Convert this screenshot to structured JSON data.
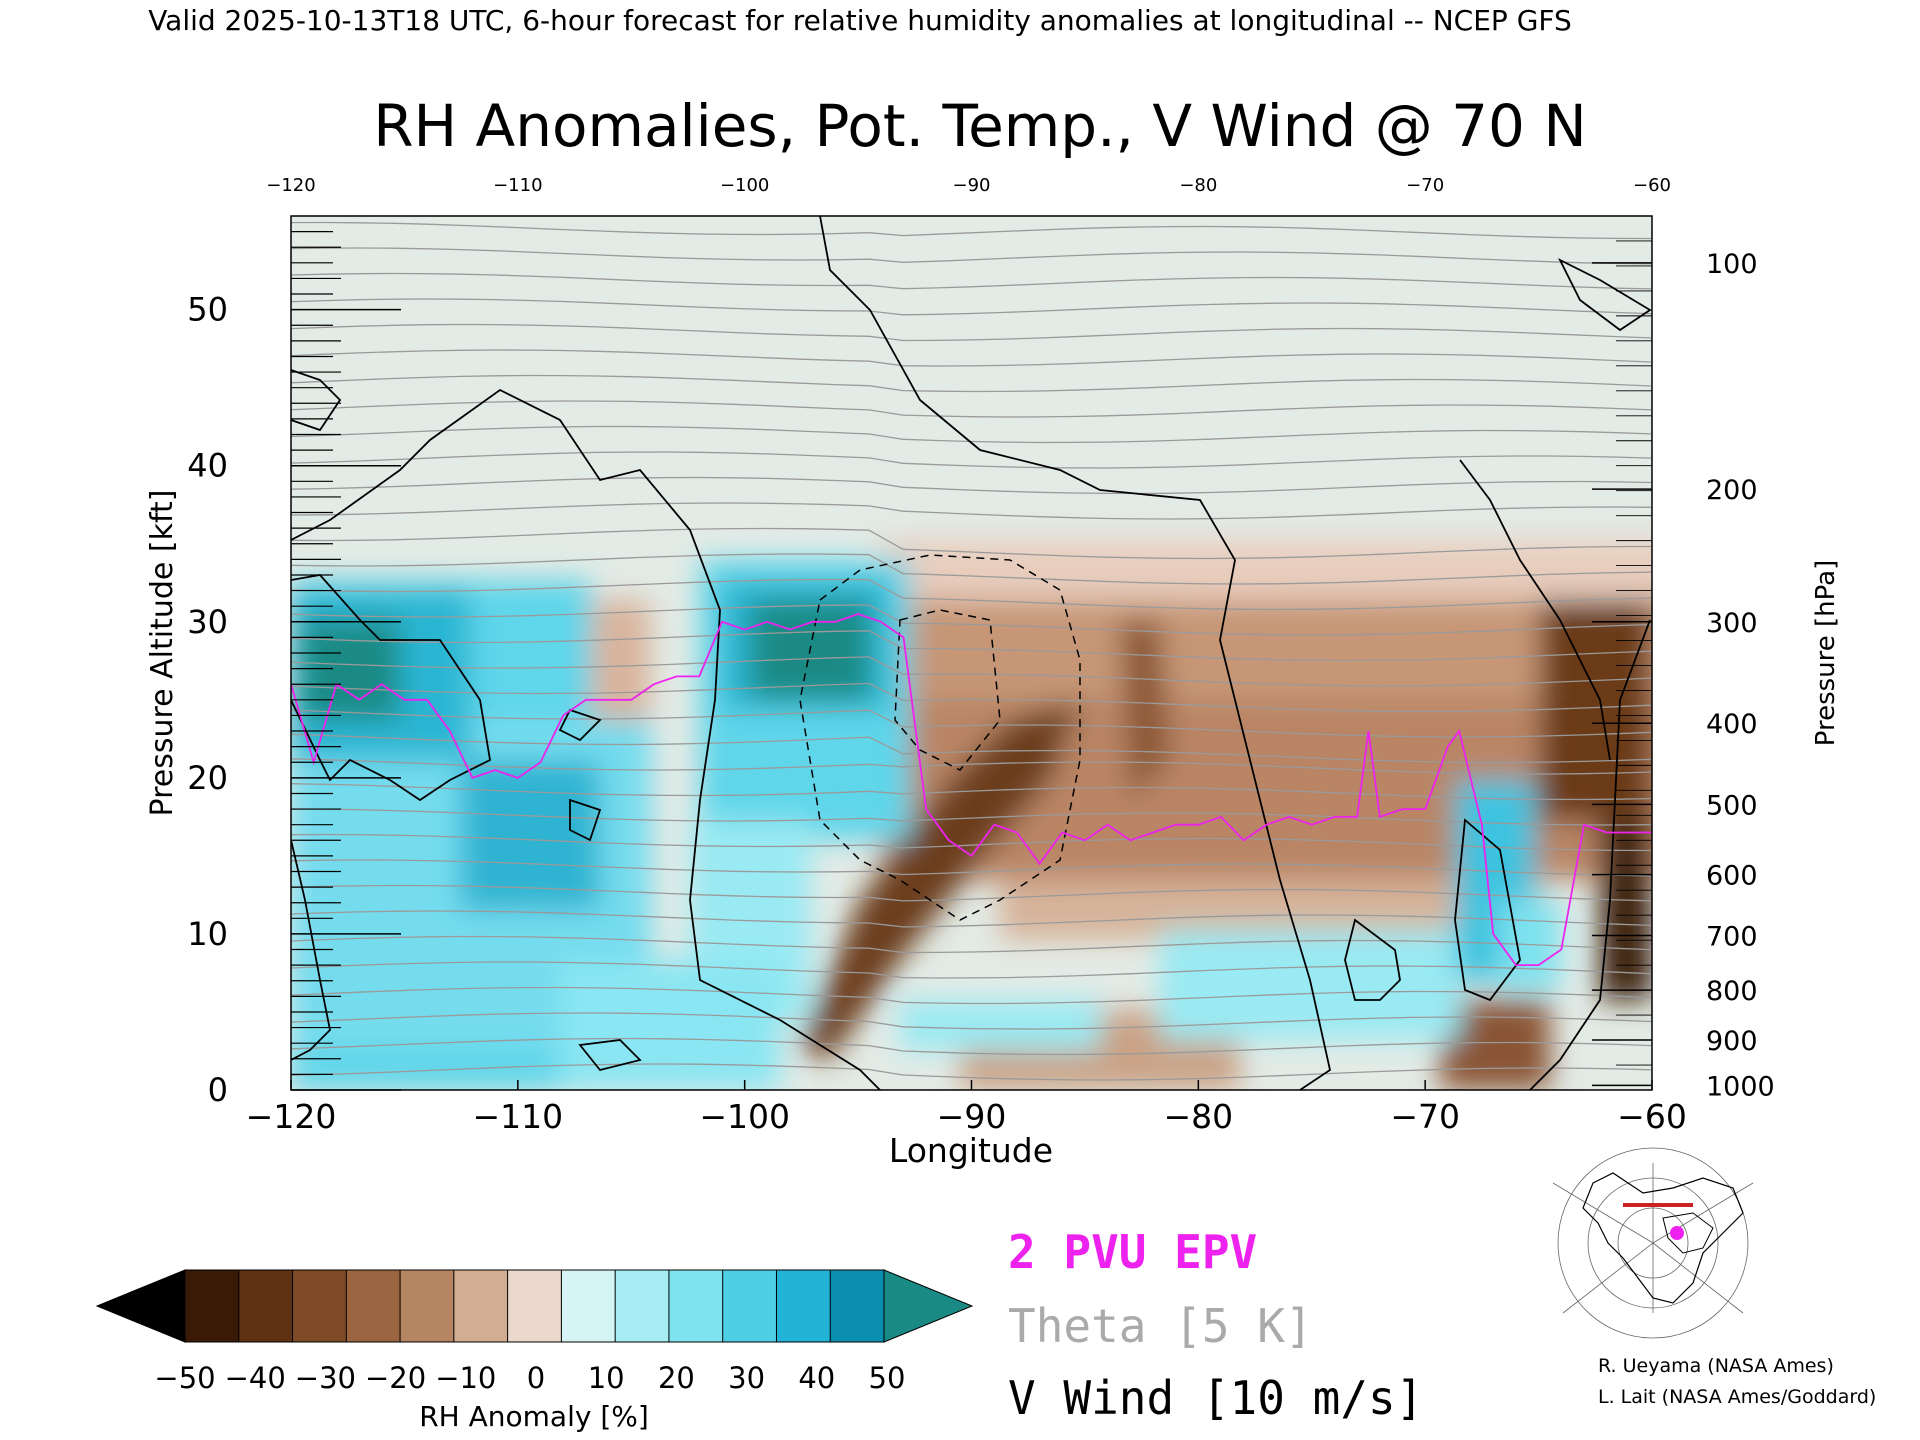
{
  "header": {
    "caption": "Valid 2025-10-13T18 UTC, 6-hour forecast for relative humidity anomalies at longitudinal -- NCEP GFS",
    "title": "RH Anomalies, Pot. Temp., V Wind @ 70 N"
  },
  "chart_data": {
    "type": "heatmap",
    "title": "RH Anomalies, Pot. Temp., V Wind @ 70 N",
    "xlabel": "Longitude",
    "ylabel": "Pressure Altitude [kft]",
    "y2label": "Pressure [hPa]",
    "xlim": [
      -120,
      -60
    ],
    "ylim": [
      0,
      56
    ],
    "x_ticks": [
      -120,
      -110,
      -100,
      -90,
      -80,
      -70,
      -60
    ],
    "x_tick_labels": [
      "−120",
      "−110",
      "−100",
      "−90",
      "−80",
      "−70",
      "−60"
    ],
    "y_ticks": [
      0,
      10,
      20,
      30,
      40,
      50
    ],
    "y_tick_labels": [
      "0",
      "10",
      "20",
      "30",
      "40",
      "50"
    ],
    "pressure_ticks": [
      {
        "label": "100",
        "kft": 53
      },
      {
        "label": "200",
        "kft": 38.5
      },
      {
        "label": "300",
        "kft": 30
      },
      {
        "label": "400",
        "kft": 23.5
      },
      {
        "label": "500",
        "kft": 18.3
      },
      {
        "label": "600",
        "kft": 13.8
      },
      {
        "label": "700",
        "kft": 9.9
      },
      {
        "label": "800",
        "kft": 6.4
      },
      {
        "label": "900",
        "kft": 3.2
      },
      {
        "label": "1000",
        "kft": 0.3
      }
    ],
    "colorbar": {
      "label": "RH Anomaly [%]",
      "ticks": [
        -50,
        -40,
        -30,
        -20,
        -10,
        0,
        10,
        20,
        30,
        40,
        50
      ],
      "tick_labels": [
        "−50",
        "−40",
        "−30",
        "−20",
        "−10",
        "0",
        "10",
        "20",
        "30",
        "40",
        "50"
      ],
      "colors": [
        "#3a1a06",
        "#5e3112",
        "#7e4a26",
        "#9a6540",
        "#b68562",
        "#d2ad92",
        "#ebd8cd",
        "#d4f4f6",
        "#a9edf4",
        "#7fe3ef",
        "#4dd0e6",
        "#21b4d6",
        "#0a8fb0"
      ],
      "under_color": "#000000",
      "over_color": "#1a8a84"
    },
    "theta_contours_K": [
      270,
      290,
      300,
      310,
      320,
      330,
      340,
      350,
      360,
      370,
      380,
      390,
      400,
      410,
      420
    ],
    "pv_2pvu_line": {
      "lon": [
        -120,
        -119,
        -118,
        -117,
        -116,
        -115,
        -114,
        -113,
        -112,
        -111,
        -110,
        -109,
        -108,
        -107,
        -106,
        -105,
        -104,
        -103,
        -102,
        -101,
        -100,
        -99,
        -98,
        -97,
        -96,
        -95,
        -94,
        -93,
        -92,
        -91,
        -90,
        -89,
        -88,
        -87,
        -86,
        -85,
        -84,
        -83,
        -82,
        -81,
        -80,
        -79,
        -78,
        -77,
        -76,
        -75,
        -74,
        -73,
        -72.5,
        -72,
        -71,
        -70,
        -69,
        -68.5,
        -68,
        -67.5,
        -67,
        -66,
        -65,
        -64,
        -63,
        -62,
        -61,
        -60
      ],
      "kft": [
        26,
        21,
        26,
        25,
        26,
        25,
        25,
        23,
        20,
        20.5,
        20,
        21,
        24,
        25,
        25,
        25,
        26,
        26.5,
        26.5,
        30,
        29.5,
        30,
        29.5,
        30,
        30,
        30.5,
        30,
        29,
        18,
        16,
        15,
        17,
        16.5,
        14.5,
        16.5,
        16,
        17,
        16,
        16.5,
        17,
        17,
        17.5,
        16,
        17,
        17.5,
        17,
        17.5,
        17.5,
        23,
        17.5,
        18,
        18,
        22,
        23,
        20,
        17,
        10,
        8,
        8,
        9,
        17,
        16.5,
        16.5,
        16.5
      ]
    },
    "v_wind_contours_ms": [
      -10,
      0,
      10
    ],
    "legend": [
      {
        "label": "2 PVU EPV",
        "color": "#ee22ee"
      },
      {
        "label": "Theta [5 K]",
        "color": "#aaaaaa"
      },
      {
        "label": "V Wind [10 m/s]",
        "color": "#000000"
      }
    ],
    "grid": false
  },
  "credits": {
    "line1": "R. Ueyama (NASA Ames)",
    "line2": "L. Lait (NASA Ames/Goddard)"
  },
  "colors": {
    "pv_line": "#ee22ee",
    "theta_line": "#9a9a9a",
    "wind_contour": "#000000",
    "map_track": "#cc2222",
    "map_marker": "#ee22ee"
  },
  "icons": {
    "inset_map": "north-polar-map-icon"
  }
}
